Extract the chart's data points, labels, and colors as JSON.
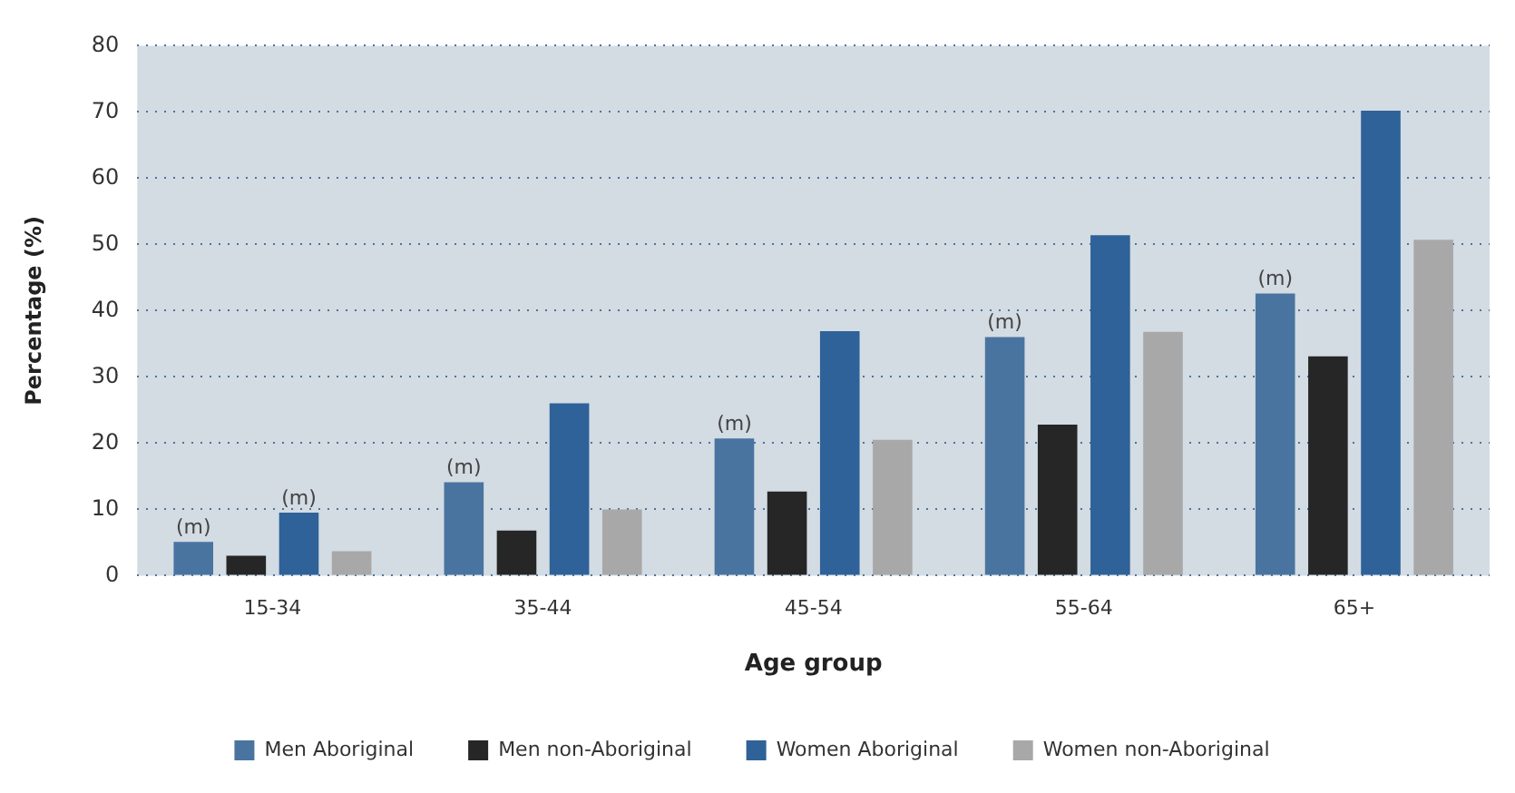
{
  "chart_data": {
    "type": "bar",
    "xlabel": "Age group",
    "ylabel": "Percentage (%)",
    "categories": [
      "15-34",
      "35-44",
      "45-54",
      "55-64",
      "65+"
    ],
    "series": [
      {
        "name": "Men Aboriginal",
        "color": "#4a74a0",
        "values": [
          5.1,
          14.1,
          20.7,
          36,
          42.6
        ],
        "value_labels": [
          "(m)",
          "(m)",
          "(m)",
          "(m)",
          "(m)"
        ]
      },
      {
        "name": "Men non-Aboriginal",
        "color": "#262626",
        "values": [
          3,
          6.8,
          12.7,
          22.8,
          33.1
        ]
      },
      {
        "name": "Women Aboriginal",
        "color": "#2e6298",
        "values": [
          9.5,
          26,
          36.9,
          51.4,
          70.2
        ],
        "value_labels": [
          "(m)",
          null,
          null,
          null,
          null
        ]
      },
      {
        "name": "Women non-Aboriginal",
        "color": "#a8a8a8",
        "values": [
          3.7,
          10,
          20.5,
          36.8,
          50.7
        ]
      }
    ],
    "ylim": [
      0,
      80
    ],
    "yticks": [
      0,
      10,
      20,
      30,
      40,
      50,
      60,
      70,
      80
    ],
    "grid": "y",
    "legend": "bottom"
  }
}
